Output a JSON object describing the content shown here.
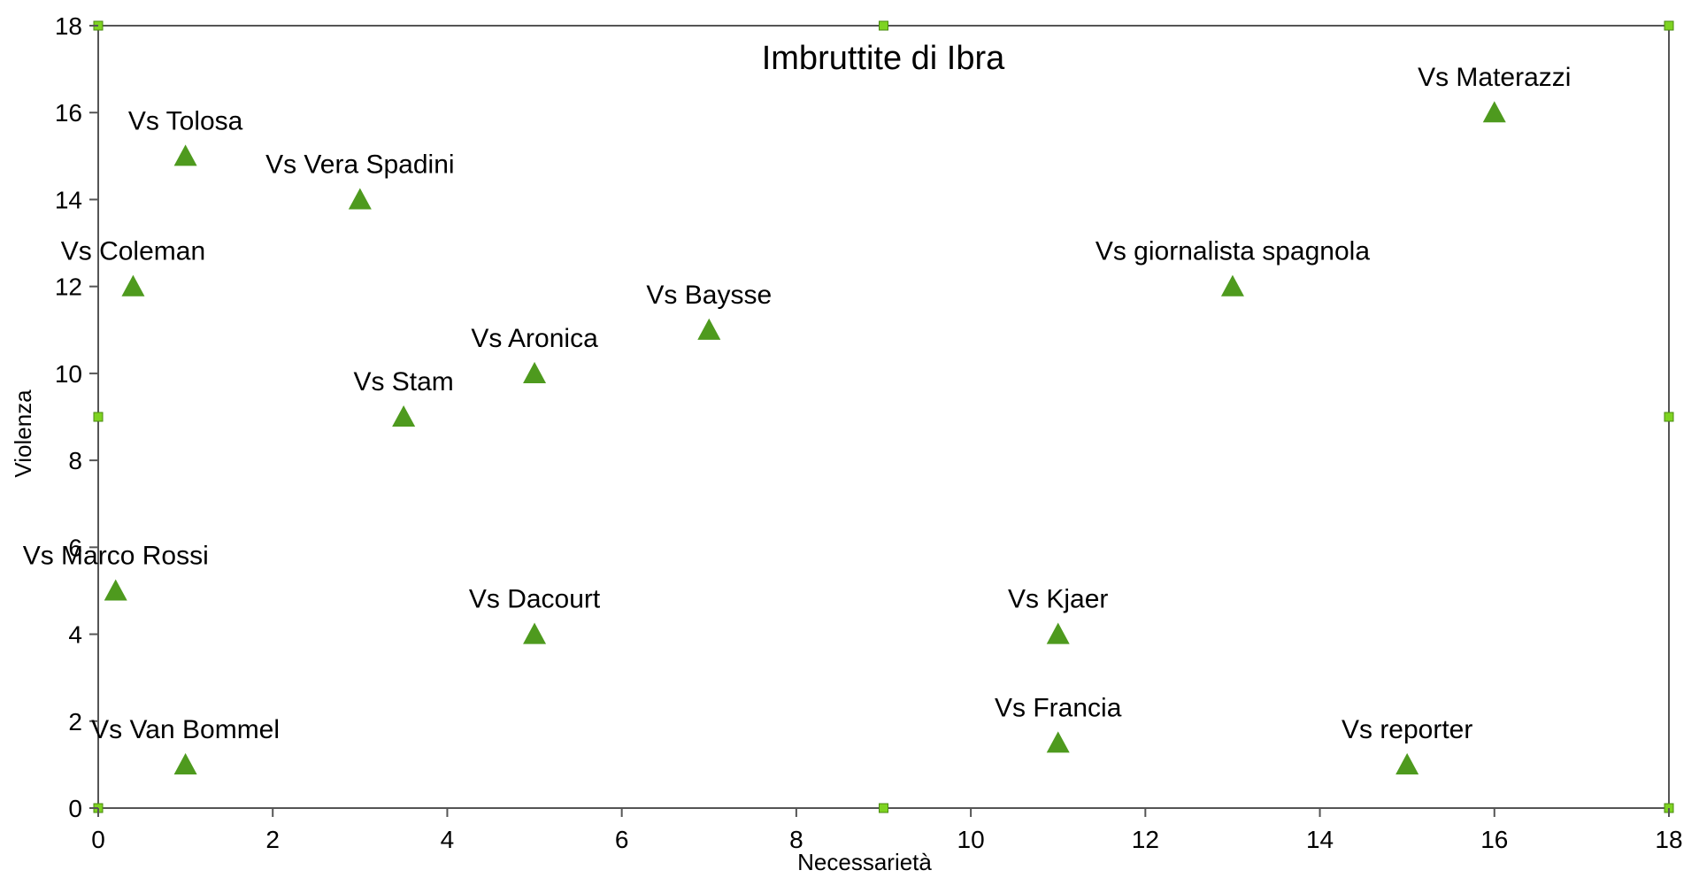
{
  "chart_data": {
    "type": "scatter",
    "title": "Imbruttite di Ibra",
    "xlabel": "Necessarietà",
    "ylabel": "Violenza",
    "xlim": [
      0,
      18
    ],
    "ylim": [
      0,
      18
    ],
    "xticks": [
      0,
      2,
      4,
      6,
      8,
      10,
      12,
      14,
      16,
      18
    ],
    "yticks": [
      0,
      2,
      4,
      6,
      8,
      10,
      12,
      14,
      16,
      18
    ],
    "grid": false,
    "marker": "triangle",
    "marker_color": "#4e9a1e",
    "selection_handle_color": "#7ed321",
    "points": [
      {
        "label": "Vs Materazzi",
        "x": 16,
        "y": 16
      },
      {
        "label": "Vs Tolosa",
        "x": 1,
        "y": 15
      },
      {
        "label": "Vs Vera Spadini",
        "x": 3,
        "y": 14
      },
      {
        "label": "Vs Coleman",
        "x": 0.4,
        "y": 12
      },
      {
        "label": "Vs giornalista spagnola",
        "x": 13,
        "y": 12
      },
      {
        "label": "Vs Baysse",
        "x": 7,
        "y": 11
      },
      {
        "label": "Vs Aronica",
        "x": 5,
        "y": 10
      },
      {
        "label": "Vs Stam",
        "x": 3.5,
        "y": 9
      },
      {
        "label": "Vs Marco Rossi",
        "x": 0.2,
        "y": 5
      },
      {
        "label": "Vs Dacourt",
        "x": 5,
        "y": 4
      },
      {
        "label": "Vs Kjaer",
        "x": 11,
        "y": 4
      },
      {
        "label": "Vs Francia",
        "x": 11,
        "y": 1.5
      },
      {
        "label": "Vs Van Bommel",
        "x": 1,
        "y": 1
      },
      {
        "label": "Vs reporter",
        "x": 15,
        "y": 1
      }
    ]
  }
}
